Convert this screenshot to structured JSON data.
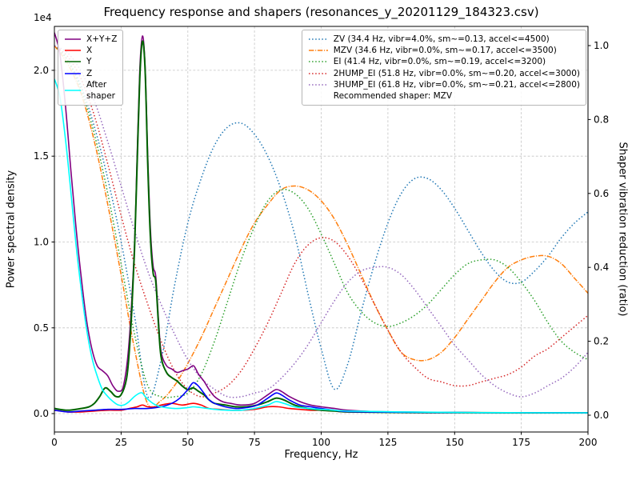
{
  "chart_data": {
    "type": "line",
    "title": "Frequency response and shapers (resonances_y_20201129_184323.csv)",
    "xlabel": "Frequency, Hz",
    "ylabel_left": "Power spectral density",
    "ylabel_right": "Shaper vibration reduction (ratio)",
    "left_axis_multiplier": "1e4",
    "grid": true,
    "xlim": [
      0,
      200
    ],
    "x_ticks": [
      0,
      25,
      50,
      75,
      100,
      125,
      150,
      175,
      200
    ],
    "left_ylim": [
      -0.107,
      2.256
    ],
    "left_ticks": [
      0.0,
      0.5,
      1.0,
      1.5,
      2.0
    ],
    "right_ylim": [
      -0.0455,
      1.0519
    ],
    "right_ticks": [
      0.0,
      0.2,
      0.4,
      0.6,
      0.8,
      1.0
    ],
    "psd_units": "1e4",
    "psd_series": [
      {
        "name": "X+Y+Z",
        "label": "X+Y+Z",
        "color": "#800080",
        "style": "solid",
        "points": [
          [
            0,
            2.22
          ],
          [
            2,
            2.1
          ],
          [
            4,
            1.82
          ],
          [
            6,
            1.45
          ],
          [
            8,
            1.1
          ],
          [
            10,
            0.8
          ],
          [
            12,
            0.55
          ],
          [
            14,
            0.38
          ],
          [
            16,
            0.28
          ],
          [
            18,
            0.25
          ],
          [
            20,
            0.22
          ],
          [
            22,
            0.16
          ],
          [
            24,
            0.13
          ],
          [
            26,
            0.17
          ],
          [
            28,
            0.42
          ],
          [
            30,
            0.98
          ],
          [
            31,
            1.5
          ],
          [
            32,
            2.0
          ],
          [
            33,
            2.2
          ],
          [
            34,
            2.02
          ],
          [
            35,
            1.5
          ],
          [
            36,
            1.07
          ],
          [
            37,
            0.86
          ],
          [
            38,
            0.8
          ],
          [
            39,
            0.55
          ],
          [
            40,
            0.36
          ],
          [
            42,
            0.28
          ],
          [
            44,
            0.26
          ],
          [
            46,
            0.24
          ],
          [
            48,
            0.25
          ],
          [
            50,
            0.26
          ],
          [
            52,
            0.28
          ],
          [
            53,
            0.26
          ],
          [
            54,
            0.23
          ],
          [
            56,
            0.19
          ],
          [
            58,
            0.14
          ],
          [
            60,
            0.1
          ],
          [
            63,
            0.07
          ],
          [
            66,
            0.06
          ],
          [
            70,
            0.05
          ],
          [
            75,
            0.06
          ],
          [
            80,
            0.11
          ],
          [
            83,
            0.14
          ],
          [
            85,
            0.13
          ],
          [
            88,
            0.1
          ],
          [
            92,
            0.07
          ],
          [
            96,
            0.05
          ],
          [
            100,
            0.04
          ],
          [
            105,
            0.03
          ],
          [
            110,
            0.02
          ],
          [
            120,
            0.012
          ],
          [
            140,
            0.008
          ],
          [
            160,
            0.006
          ],
          [
            180,
            0.005
          ],
          [
            200,
            0.005
          ]
        ]
      },
      {
        "name": "X",
        "label": "X",
        "color": "#ff0000",
        "style": "solid",
        "points": [
          [
            0,
            0.02
          ],
          [
            5,
            0.01
          ],
          [
            10,
            0.01
          ],
          [
            15,
            0.015
          ],
          [
            20,
            0.02
          ],
          [
            25,
            0.02
          ],
          [
            28,
            0.03
          ],
          [
            31,
            0.04
          ],
          [
            33,
            0.05
          ],
          [
            35,
            0.04
          ],
          [
            38,
            0.04
          ],
          [
            40,
            0.05
          ],
          [
            44,
            0.06
          ],
          [
            48,
            0.05
          ],
          [
            52,
            0.06
          ],
          [
            55,
            0.05
          ],
          [
            58,
            0.03
          ],
          [
            62,
            0.025
          ],
          [
            66,
            0.02
          ],
          [
            70,
            0.02
          ],
          [
            75,
            0.025
          ],
          [
            80,
            0.04
          ],
          [
            84,
            0.04
          ],
          [
            88,
            0.03
          ],
          [
            92,
            0.025
          ],
          [
            96,
            0.02
          ],
          [
            100,
            0.02
          ],
          [
            105,
            0.015
          ],
          [
            110,
            0.01
          ],
          [
            130,
            0.008
          ],
          [
            160,
            0.006
          ],
          [
            200,
            0.005
          ]
        ]
      },
      {
        "name": "Y",
        "label": "Y",
        "color": "#006400",
        "style": "solid",
        "points": [
          [
            0,
            0.03
          ],
          [
            5,
            0.02
          ],
          [
            10,
            0.03
          ],
          [
            13,
            0.04
          ],
          [
            15,
            0.06
          ],
          [
            17,
            0.1
          ],
          [
            19,
            0.15
          ],
          [
            21,
            0.13
          ],
          [
            23,
            0.1
          ],
          [
            25,
            0.11
          ],
          [
            27,
            0.2
          ],
          [
            28,
            0.35
          ],
          [
            29,
            0.6
          ],
          [
            30,
            0.95
          ],
          [
            31,
            1.45
          ],
          [
            32,
            1.95
          ],
          [
            33,
            2.17
          ],
          [
            34,
            2.0
          ],
          [
            35,
            1.45
          ],
          [
            36,
            1.02
          ],
          [
            37,
            0.82
          ],
          [
            38,
            0.77
          ],
          [
            39,
            0.52
          ],
          [
            40,
            0.33
          ],
          [
            42,
            0.24
          ],
          [
            44,
            0.21
          ],
          [
            46,
            0.19
          ],
          [
            48,
            0.16
          ],
          [
            50,
            0.14
          ],
          [
            52,
            0.15
          ],
          [
            54,
            0.13
          ],
          [
            56,
            0.11
          ],
          [
            58,
            0.08
          ],
          [
            60,
            0.06
          ],
          [
            64,
            0.05
          ],
          [
            68,
            0.04
          ],
          [
            72,
            0.04
          ],
          [
            76,
            0.05
          ],
          [
            80,
            0.07
          ],
          [
            83,
            0.09
          ],
          [
            86,
            0.08
          ],
          [
            90,
            0.05
          ],
          [
            95,
            0.03
          ],
          [
            100,
            0.02
          ],
          [
            105,
            0.015
          ],
          [
            110,
            0.01
          ],
          [
            120,
            0.008
          ],
          [
            140,
            0.006
          ],
          [
            170,
            0.005
          ],
          [
            200,
            0.005
          ]
        ]
      },
      {
        "name": "Z",
        "label": "Z",
        "color": "#0000ff",
        "style": "solid",
        "points": [
          [
            0,
            0.02
          ],
          [
            5,
            0.01
          ],
          [
            10,
            0.015
          ],
          [
            15,
            0.02
          ],
          [
            20,
            0.025
          ],
          [
            25,
            0.025
          ],
          [
            30,
            0.03
          ],
          [
            35,
            0.03
          ],
          [
            40,
            0.04
          ],
          [
            44,
            0.06
          ],
          [
            47,
            0.09
          ],
          [
            50,
            0.14
          ],
          [
            52,
            0.18
          ],
          [
            54,
            0.16
          ],
          [
            56,
            0.12
          ],
          [
            58,
            0.08
          ],
          [
            60,
            0.06
          ],
          [
            64,
            0.04
          ],
          [
            68,
            0.03
          ],
          [
            72,
            0.035
          ],
          [
            76,
            0.05
          ],
          [
            80,
            0.09
          ],
          [
            83,
            0.12
          ],
          [
            85,
            0.11
          ],
          [
            88,
            0.08
          ],
          [
            92,
            0.05
          ],
          [
            96,
            0.04
          ],
          [
            100,
            0.03
          ],
          [
            105,
            0.02
          ],
          [
            110,
            0.012
          ],
          [
            130,
            0.008
          ],
          [
            160,
            0.006
          ],
          [
            200,
            0.005
          ]
        ]
      },
      {
        "name": "After shaper",
        "label": "After\nshaper",
        "color": "#00ffff",
        "style": "solid",
        "points": [
          [
            0,
            1.95
          ],
          [
            2,
            1.85
          ],
          [
            4,
            1.62
          ],
          [
            6,
            1.32
          ],
          [
            8,
            1.0
          ],
          [
            10,
            0.73
          ],
          [
            12,
            0.5
          ],
          [
            14,
            0.33
          ],
          [
            16,
            0.22
          ],
          [
            18,
            0.14
          ],
          [
            20,
            0.1
          ],
          [
            22,
            0.07
          ],
          [
            24,
            0.05
          ],
          [
            26,
            0.05
          ],
          [
            28,
            0.07
          ],
          [
            30,
            0.1
          ],
          [
            32,
            0.12
          ],
          [
            33,
            0.12
          ],
          [
            34,
            0.1
          ],
          [
            36,
            0.07
          ],
          [
            38,
            0.05
          ],
          [
            40,
            0.04
          ],
          [
            45,
            0.03
          ],
          [
            50,
            0.035
          ],
          [
            52,
            0.04
          ],
          [
            55,
            0.035
          ],
          [
            60,
            0.025
          ],
          [
            65,
            0.02
          ],
          [
            70,
            0.02
          ],
          [
            75,
            0.03
          ],
          [
            80,
            0.05
          ],
          [
            83,
            0.07
          ],
          [
            86,
            0.06
          ],
          [
            90,
            0.04
          ],
          [
            95,
            0.03
          ],
          [
            100,
            0.025
          ],
          [
            105,
            0.02
          ],
          [
            110,
            0.015
          ],
          [
            130,
            0.01
          ],
          [
            160,
            0.006
          ],
          [
            200,
            0.005
          ]
        ]
      }
    ],
    "shaper_x": [
      0,
      5,
      10,
      15,
      20,
      25,
      30,
      35,
      40,
      45,
      50,
      55,
      60,
      65,
      70,
      75,
      80,
      85,
      90,
      95,
      100,
      105,
      110,
      115,
      120,
      125,
      130,
      135,
      140,
      145,
      150,
      155,
      160,
      165,
      170,
      175,
      180,
      185,
      190,
      195,
      200
    ],
    "shaper_series": [
      {
        "name": "ZV",
        "label": "ZV (34.4 Hz, vibr=4.0%, sm~=0.13, accel<=4500)",
        "color": "#1f77b4",
        "style": "dotted",
        "values": [
          1.0,
          0.96,
          0.89,
          0.78,
          0.64,
          0.47,
          0.27,
          0.05,
          0.15,
          0.35,
          0.52,
          0.64,
          0.73,
          0.78,
          0.79,
          0.76,
          0.7,
          0.61,
          0.49,
          0.33,
          0.18,
          0.07,
          0.14,
          0.28,
          0.41,
          0.52,
          0.6,
          0.64,
          0.64,
          0.61,
          0.56,
          0.5,
          0.44,
          0.39,
          0.36,
          0.36,
          0.39,
          0.43,
          0.48,
          0.52,
          0.55
        ]
      },
      {
        "name": "MZV",
        "label": "MZV (34.6 Hz, vibr=0.0%, sm~=0.17, accel<=3500)",
        "color": "#ff7f0e",
        "style": "dashdot",
        "values": [
          1.0,
          0.95,
          0.87,
          0.74,
          0.57,
          0.38,
          0.18,
          0.03,
          0.04,
          0.08,
          0.14,
          0.21,
          0.29,
          0.37,
          0.45,
          0.52,
          0.57,
          0.61,
          0.62,
          0.61,
          0.58,
          0.53,
          0.46,
          0.38,
          0.3,
          0.23,
          0.17,
          0.15,
          0.15,
          0.17,
          0.21,
          0.26,
          0.31,
          0.36,
          0.4,
          0.42,
          0.43,
          0.43,
          0.41,
          0.37,
          0.33
        ]
      },
      {
        "name": "EI",
        "label": "EI (41.4 Hz, vibr=0.0%, sm~=0.19, accel<=3200)",
        "color": "#2ca02c",
        "style": "dotted",
        "values": [
          1.0,
          0.96,
          0.88,
          0.76,
          0.6,
          0.41,
          0.22,
          0.08,
          0.05,
          0.05,
          0.06,
          0.11,
          0.2,
          0.31,
          0.42,
          0.51,
          0.58,
          0.61,
          0.6,
          0.56,
          0.49,
          0.41,
          0.33,
          0.28,
          0.25,
          0.24,
          0.25,
          0.27,
          0.3,
          0.34,
          0.38,
          0.41,
          0.42,
          0.42,
          0.4,
          0.36,
          0.31,
          0.25,
          0.2,
          0.17,
          0.15
        ]
      },
      {
        "name": "2HUMP_EI",
        "label": "2HUMP_EI (51.8 Hz, vibr=0.0%, sm~=0.20, accel<=3000)",
        "color": "#d62728",
        "style": "dotted",
        "values": [
          1.0,
          0.97,
          0.91,
          0.81,
          0.68,
          0.54,
          0.41,
          0.3,
          0.2,
          0.12,
          0.07,
          0.05,
          0.06,
          0.08,
          0.12,
          0.18,
          0.25,
          0.33,
          0.41,
          0.46,
          0.48,
          0.47,
          0.43,
          0.37,
          0.3,
          0.23,
          0.17,
          0.13,
          0.1,
          0.09,
          0.08,
          0.08,
          0.09,
          0.1,
          0.11,
          0.13,
          0.16,
          0.18,
          0.21,
          0.24,
          0.27
        ]
      },
      {
        "name": "3HUMP_EI",
        "label": "3HUMP_EI (61.8 Hz, vibr=0.0%, sm~=0.21, accel<=2800)",
        "color": "#9467bd",
        "style": "dotted",
        "values": [
          1.0,
          0.98,
          0.93,
          0.85,
          0.74,
          0.62,
          0.5,
          0.39,
          0.3,
          0.22,
          0.15,
          0.1,
          0.07,
          0.05,
          0.05,
          0.06,
          0.07,
          0.1,
          0.14,
          0.19,
          0.25,
          0.31,
          0.36,
          0.39,
          0.4,
          0.4,
          0.38,
          0.34,
          0.29,
          0.24,
          0.19,
          0.15,
          0.11,
          0.08,
          0.06,
          0.05,
          0.06,
          0.08,
          0.1,
          0.13,
          0.17
        ]
      }
    ],
    "recommended_label": "Recommended shaper: MZV"
  }
}
